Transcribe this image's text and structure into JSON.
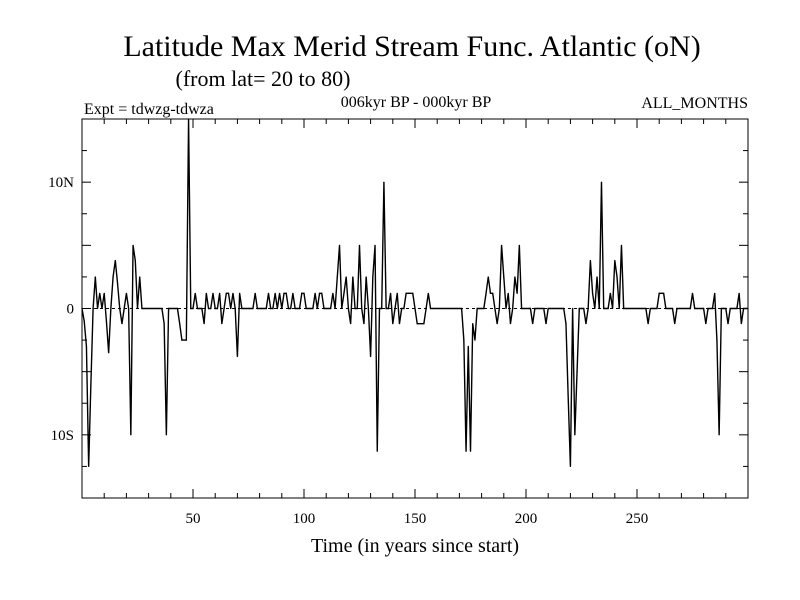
{
  "chart_data": {
    "type": "line",
    "title": "Latitude Max Merid Stream Func. Atlantic (oN)",
    "subtitle": "(from lat= 20 to 80)",
    "expt_label": "Expt = tdwzg-tdwza",
    "period_label": "006kyr BP - 000kyr BP",
    "months_label": "ALL_MONTHS",
    "xlabel": "Time (in years since start)",
    "ylabel": "",
    "xlim": [
      0,
      300
    ],
    "ylim": [
      -15,
      15
    ],
    "x_ticks": [
      {
        "value": 50,
        "label": "50"
      },
      {
        "value": 100,
        "label": "100"
      },
      {
        "value": 150,
        "label": "150"
      },
      {
        "value": 200,
        "label": "200"
      },
      {
        "value": 250,
        "label": "250"
      }
    ],
    "y_ticks": [
      {
        "value": 10,
        "label": "10N"
      },
      {
        "value": 0,
        "label": "0"
      },
      {
        "value": -10,
        "label": "10S"
      }
    ],
    "zero_line": true,
    "series": [
      {
        "color": "#000000",
        "points": [
          [
            0,
            0
          ],
          [
            1,
            -1
          ],
          [
            2,
            -3
          ],
          [
            3,
            -12.5
          ],
          [
            4,
            -6
          ],
          [
            5,
            0
          ],
          [
            6,
            2.5
          ],
          [
            7,
            0
          ],
          [
            8,
            1.2
          ],
          [
            9,
            0
          ],
          [
            10,
            1.2
          ],
          [
            11,
            -1
          ],
          [
            12,
            -3.5
          ],
          [
            13,
            0
          ],
          [
            14,
            2.5
          ],
          [
            15,
            3.8
          ],
          [
            16,
            2
          ],
          [
            17,
            0
          ],
          [
            18,
            -1.2
          ],
          [
            19,
            0
          ],
          [
            20,
            1.2
          ],
          [
            21,
            0
          ],
          [
            22,
            -10
          ],
          [
            23,
            5
          ],
          [
            24,
            3.8
          ],
          [
            25,
            0
          ],
          [
            26,
            2.5
          ],
          [
            27,
            0
          ],
          [
            28,
            0
          ],
          [
            29,
            0
          ],
          [
            30,
            0
          ],
          [
            31,
            0
          ],
          [
            32,
            0
          ],
          [
            33,
            0
          ],
          [
            34,
            0
          ],
          [
            35,
            0
          ],
          [
            36,
            0
          ],
          [
            37,
            -1.2
          ],
          [
            38,
            -10
          ],
          [
            39,
            0
          ],
          [
            40,
            0
          ],
          [
            41,
            0
          ],
          [
            42,
            0
          ],
          [
            43,
            0
          ],
          [
            44,
            -1.2
          ],
          [
            45,
            -2.5
          ],
          [
            46,
            -2.5
          ],
          [
            47,
            -2.5
          ],
          [
            48,
            15
          ],
          [
            49,
            0
          ],
          [
            50,
            0
          ],
          [
            51,
            1.2
          ],
          [
            52,
            0
          ],
          [
            53,
            0
          ],
          [
            54,
            0
          ],
          [
            55,
            -1.2
          ],
          [
            56,
            1.2
          ],
          [
            57,
            0
          ],
          [
            58,
            0
          ],
          [
            59,
            1.2
          ],
          [
            60,
            0
          ],
          [
            61,
            0
          ],
          [
            62,
            1.2
          ],
          [
            63,
            -1.2
          ],
          [
            64,
            0
          ],
          [
            65,
            1.2
          ],
          [
            66,
            1.2
          ],
          [
            67,
            0
          ],
          [
            68,
            1.2
          ],
          [
            69,
            0
          ],
          [
            70,
            -3.8
          ],
          [
            71,
            1.2
          ],
          [
            72,
            0
          ],
          [
            73,
            0
          ],
          [
            74,
            0
          ],
          [
            75,
            0
          ],
          [
            76,
            0
          ],
          [
            77,
            0
          ],
          [
            78,
            1.2
          ],
          [
            79,
            0
          ],
          [
            80,
            0
          ],
          [
            81,
            0
          ],
          [
            82,
            0
          ],
          [
            83,
            0
          ],
          [
            84,
            1.2
          ],
          [
            85,
            0
          ],
          [
            86,
            0
          ],
          [
            87,
            1.2
          ],
          [
            88,
            0
          ],
          [
            89,
            1.2
          ],
          [
            90,
            0
          ],
          [
            91,
            1.2
          ],
          [
            92,
            1.2
          ],
          [
            93,
            0
          ],
          [
            94,
            0
          ],
          [
            95,
            1.2
          ],
          [
            96,
            0
          ],
          [
            97,
            0
          ],
          [
            98,
            0
          ],
          [
            99,
            1.2
          ],
          [
            100,
            1.2
          ],
          [
            101,
            0
          ],
          [
            102,
            0
          ],
          [
            103,
            0
          ],
          [
            104,
            0
          ],
          [
            105,
            1.2
          ],
          [
            106,
            0
          ],
          [
            107,
            1.2
          ],
          [
            108,
            1.2
          ],
          [
            109,
            0
          ],
          [
            110,
            0
          ],
          [
            111,
            0
          ],
          [
            112,
            0
          ],
          [
            113,
            1.2
          ],
          [
            114,
            0
          ],
          [
            115,
            2.5
          ],
          [
            116,
            5
          ],
          [
            117,
            0
          ],
          [
            118,
            1.2
          ],
          [
            119,
            2.5
          ],
          [
            120,
            0
          ],
          [
            121,
            -1.2
          ],
          [
            122,
            2.5
          ],
          [
            123,
            0
          ],
          [
            124,
            0
          ],
          [
            125,
            5
          ],
          [
            126,
            0
          ],
          [
            127,
            -1.2
          ],
          [
            128,
            2.5
          ],
          [
            129,
            0
          ],
          [
            130,
            -3.8
          ],
          [
            131,
            2.5
          ],
          [
            132,
            5
          ],
          [
            133,
            -11.3
          ],
          [
            134,
            0
          ],
          [
            135,
            0
          ],
          [
            136,
            10
          ],
          [
            137,
            0
          ],
          [
            138,
            0
          ],
          [
            139,
            1.2
          ],
          [
            140,
            -1.2
          ],
          [
            141,
            0
          ],
          [
            142,
            1.2
          ],
          [
            143,
            -1.2
          ],
          [
            144,
            0
          ],
          [
            145,
            0
          ],
          [
            146,
            1.2
          ],
          [
            147,
            1.2
          ],
          [
            148,
            1.2
          ],
          [
            149,
            1.2
          ],
          [
            150,
            0
          ],
          [
            151,
            -1.2
          ],
          [
            152,
            -1.2
          ],
          [
            153,
            -1.2
          ],
          [
            154,
            -1.2
          ],
          [
            155,
            0
          ],
          [
            156,
            1.2
          ],
          [
            157,
            0
          ],
          [
            158,
            0
          ],
          [
            159,
            0
          ],
          [
            160,
            0
          ],
          [
            161,
            0
          ],
          [
            162,
            0
          ],
          [
            163,
            0
          ],
          [
            164,
            0
          ],
          [
            165,
            0
          ],
          [
            166,
            0
          ],
          [
            167,
            0
          ],
          [
            168,
            0
          ],
          [
            169,
            0
          ],
          [
            170,
            0
          ],
          [
            171,
            0
          ],
          [
            172,
            -2.5
          ],
          [
            173,
            -11.3
          ],
          [
            174,
            -3
          ],
          [
            175,
            -11.3
          ],
          [
            176,
            -1.2
          ],
          [
            177,
            -2.5
          ],
          [
            178,
            0
          ],
          [
            179,
            0
          ],
          [
            180,
            0
          ],
          [
            181,
            0
          ],
          [
            182,
            1.2
          ],
          [
            183,
            2.5
          ],
          [
            184,
            1.2
          ],
          [
            185,
            1.2
          ],
          [
            186,
            0
          ],
          [
            187,
            -1.2
          ],
          [
            188,
            0
          ],
          [
            189,
            5
          ],
          [
            190,
            2.5
          ],
          [
            191,
            0
          ],
          [
            192,
            1.2
          ],
          [
            193,
            -1.2
          ],
          [
            194,
            0
          ],
          [
            195,
            2.5
          ],
          [
            196,
            1.2
          ],
          [
            197,
            5
          ],
          [
            198,
            0
          ],
          [
            199,
            0
          ],
          [
            200,
            0
          ],
          [
            201,
            0
          ],
          [
            202,
            0
          ],
          [
            203,
            -1.2
          ],
          [
            204,
            0
          ],
          [
            205,
            0
          ],
          [
            206,
            0
          ],
          [
            207,
            0
          ],
          [
            208,
            0
          ],
          [
            209,
            -1.2
          ],
          [
            210,
            0
          ],
          [
            211,
            0
          ],
          [
            212,
            0
          ],
          [
            213,
            0
          ],
          [
            214,
            0
          ],
          [
            215,
            0
          ],
          [
            216,
            0
          ],
          [
            217,
            0
          ],
          [
            218,
            -1.2
          ],
          [
            219,
            -7
          ],
          [
            220,
            -12.5
          ],
          [
            221,
            0
          ],
          [
            222,
            -10
          ],
          [
            223,
            -5
          ],
          [
            224,
            0
          ],
          [
            225,
            0
          ],
          [
            226,
            0
          ],
          [
            227,
            -1.2
          ],
          [
            228,
            0
          ],
          [
            229,
            3.8
          ],
          [
            230,
            1.2
          ],
          [
            231,
            0
          ],
          [
            232,
            2.5
          ],
          [
            233,
            0
          ],
          [
            234,
            10
          ],
          [
            235,
            0
          ],
          [
            236,
            0
          ],
          [
            237,
            0
          ],
          [
            238,
            1.2
          ],
          [
            239,
            0
          ],
          [
            240,
            3.8
          ],
          [
            241,
            2.5
          ],
          [
            242,
            0
          ],
          [
            243,
            5
          ],
          [
            244,
            0
          ],
          [
            245,
            0
          ],
          [
            246,
            0
          ],
          [
            247,
            0
          ],
          [
            248,
            0
          ],
          [
            249,
            0
          ],
          [
            250,
            0
          ],
          [
            251,
            0
          ],
          [
            252,
            0
          ],
          [
            253,
            0
          ],
          [
            254,
            0
          ],
          [
            255,
            -1.2
          ],
          [
            256,
            0
          ],
          [
            257,
            0
          ],
          [
            258,
            0
          ],
          [
            259,
            0
          ],
          [
            260,
            1.2
          ],
          [
            261,
            1.2
          ],
          [
            262,
            1.2
          ],
          [
            263,
            0
          ],
          [
            264,
            0
          ],
          [
            265,
            0
          ],
          [
            266,
            0
          ],
          [
            267,
            -1.2
          ],
          [
            268,
            0
          ],
          [
            269,
            0
          ],
          [
            270,
            0
          ],
          [
            271,
            0
          ],
          [
            272,
            0
          ],
          [
            273,
            0
          ],
          [
            274,
            0
          ],
          [
            275,
            1.2
          ],
          [
            276,
            0
          ],
          [
            277,
            0
          ],
          [
            278,
            0
          ],
          [
            279,
            0
          ],
          [
            280,
            0
          ],
          [
            281,
            -1.2
          ],
          [
            282,
            0
          ],
          [
            283,
            0
          ],
          [
            284,
            0
          ],
          [
            285,
            1.2
          ],
          [
            286,
            -2.5
          ],
          [
            287,
            -10
          ],
          [
            288,
            0
          ],
          [
            289,
            0
          ],
          [
            290,
            0
          ],
          [
            291,
            -1.2
          ],
          [
            292,
            0
          ],
          [
            293,
            0
          ],
          [
            294,
            0
          ],
          [
            295,
            0
          ],
          [
            296,
            1.2
          ],
          [
            297,
            -1.2
          ],
          [
            298,
            0
          ],
          [
            299,
            0
          ],
          [
            300,
            0
          ]
        ]
      }
    ]
  }
}
